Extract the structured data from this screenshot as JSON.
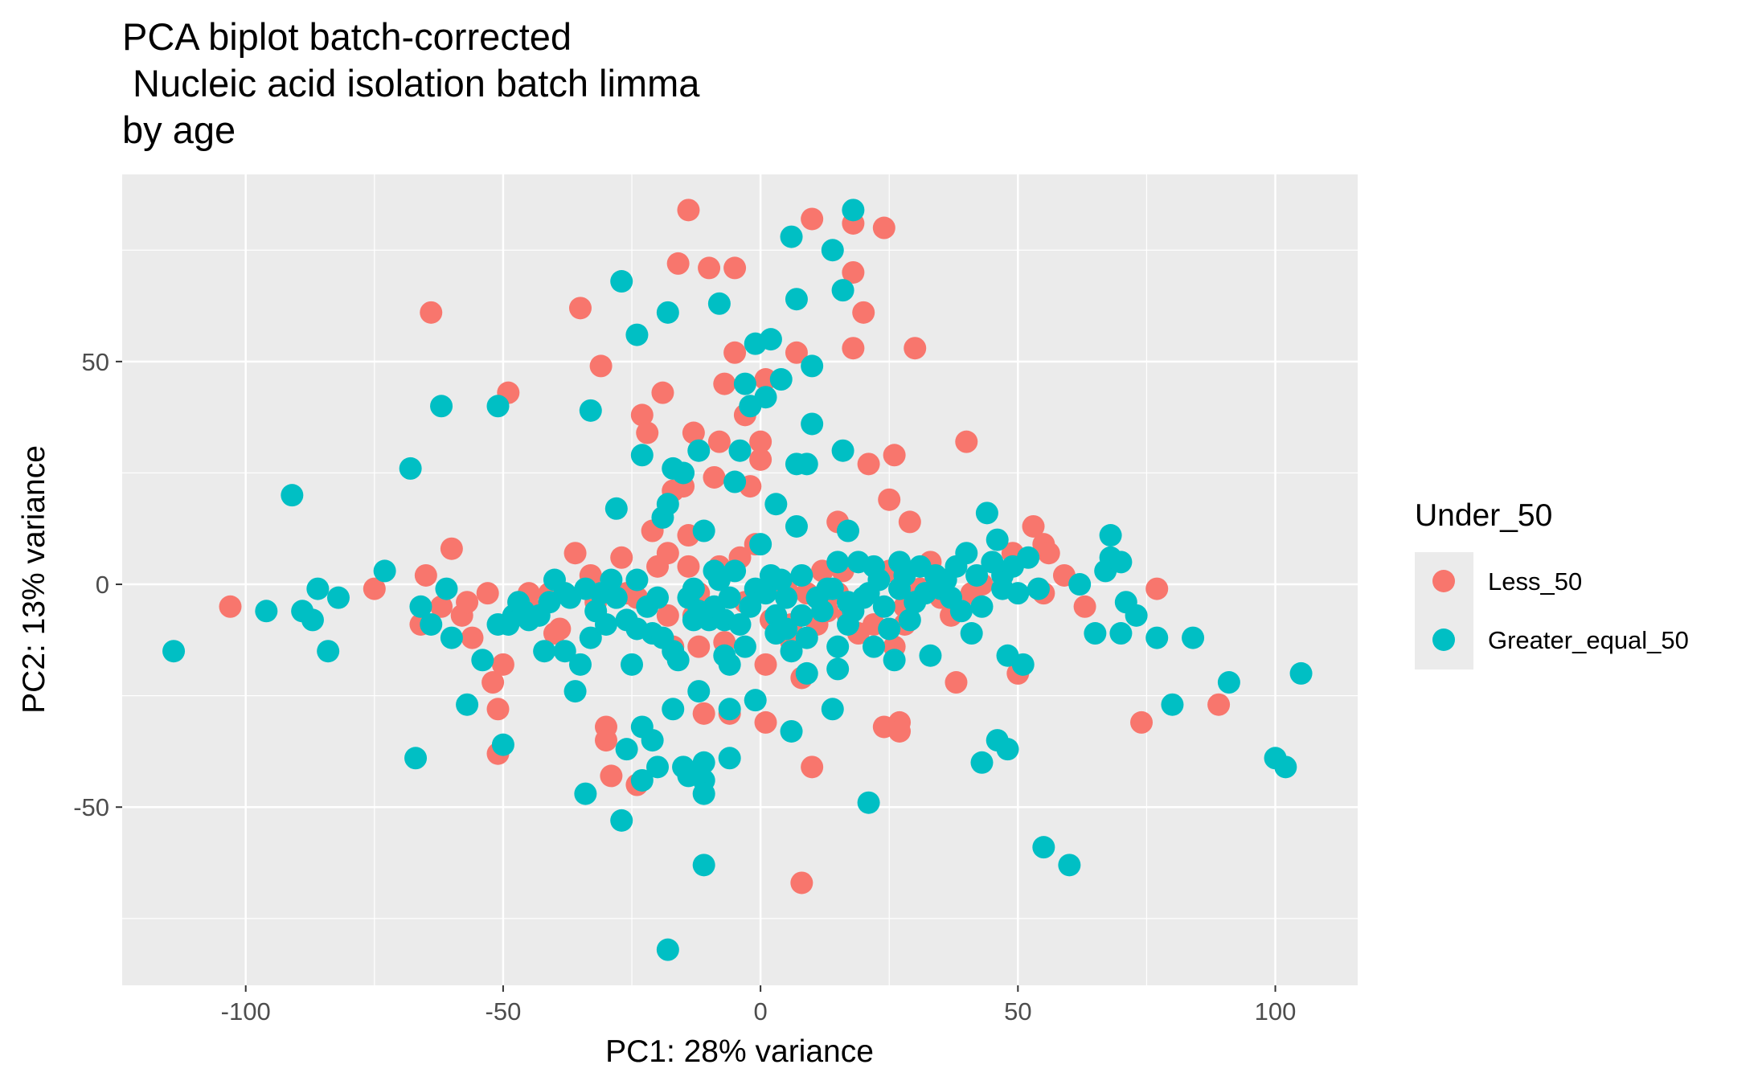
{
  "chart_data": {
    "type": "scatter",
    "title_lines": [
      "PCA biplot batch-corrected",
      " Nucleic acid isolation batch limma",
      "by age"
    ],
    "xlabel": "PC1: 28% variance",
    "ylabel": "PC2: 13% variance",
    "xlim": [
      -124,
      116
    ],
    "ylim": [
      -90,
      92
    ],
    "xticks": [
      -100,
      -50,
      0,
      50,
      100
    ],
    "yticks": [
      -50,
      0,
      50
    ],
    "grid": true,
    "legend": {
      "title": "Under_50",
      "placement": "right"
    },
    "series": [
      {
        "name": "Less_50",
        "color": "#F8766D",
        "points": [
          [
            -103,
            -5
          ],
          [
            -75,
            -1
          ],
          [
            -66,
            -9
          ],
          [
            -65,
            2
          ],
          [
            -64,
            61
          ],
          [
            -62,
            -5
          ],
          [
            -60,
            8
          ],
          [
            -58,
            -7
          ],
          [
            -57,
            -4
          ],
          [
            -56,
            -12
          ],
          [
            -53,
            -2
          ],
          [
            -52,
            -22
          ],
          [
            -51,
            -28
          ],
          [
            -51,
            -38
          ],
          [
            -50,
            -18
          ],
          [
            -49,
            43
          ],
          [
            -47,
            -4
          ],
          [
            -45,
            -2
          ],
          [
            -43,
            -6
          ],
          [
            -41,
            -2
          ],
          [
            -40,
            -11
          ],
          [
            -39,
            -10
          ],
          [
            -36,
            7
          ],
          [
            -35,
            62
          ],
          [
            -33,
            2
          ],
          [
            -32,
            -4
          ],
          [
            -31,
            49
          ],
          [
            -30,
            -32
          ],
          [
            -30,
            -35
          ],
          [
            -29,
            -43
          ],
          [
            -27,
            6
          ],
          [
            -26,
            -2
          ],
          [
            -24,
            -3
          ],
          [
            -24,
            -45
          ],
          [
            -23,
            38
          ],
          [
            -22,
            34
          ],
          [
            -21,
            12
          ],
          [
            -20,
            4
          ],
          [
            -19,
            43
          ],
          [
            -18,
            7
          ],
          [
            -18,
            -7
          ],
          [
            -17,
            -14
          ],
          [
            -17,
            21
          ],
          [
            -16,
            72
          ],
          [
            -15,
            22
          ],
          [
            -14,
            84
          ],
          [
            -14,
            11
          ],
          [
            -14,
            4
          ],
          [
            -13,
            -7
          ],
          [
            -13,
            34
          ],
          [
            -12,
            -2
          ],
          [
            -12,
            -14
          ],
          [
            -11,
            -29
          ],
          [
            -10,
            71
          ],
          [
            -9,
            24
          ],
          [
            -8,
            32
          ],
          [
            -8,
            4
          ],
          [
            -7,
            45
          ],
          [
            -7,
            -13
          ],
          [
            -6,
            -29
          ],
          [
            -5,
            52
          ],
          [
            -5,
            71
          ],
          [
            -4,
            6
          ],
          [
            -3,
            38
          ],
          [
            -3,
            -4
          ],
          [
            -2,
            22
          ],
          [
            -1,
            9
          ],
          [
            0,
            28
          ],
          [
            0,
            32
          ],
          [
            1,
            46
          ],
          [
            1,
            -18
          ],
          [
            1,
            -31
          ],
          [
            2,
            -8
          ],
          [
            3,
            1
          ],
          [
            5,
            -1
          ],
          [
            6,
            -13
          ],
          [
            6,
            -9
          ],
          [
            7,
            52
          ],
          [
            8,
            -21
          ],
          [
            8,
            -67
          ],
          [
            9,
            -2
          ],
          [
            10,
            -41
          ],
          [
            10,
            82
          ],
          [
            11,
            -9
          ],
          [
            12,
            3
          ],
          [
            13,
            -6
          ],
          [
            15,
            -2
          ],
          [
            15,
            14
          ],
          [
            16,
            3
          ],
          [
            17,
            -7
          ],
          [
            18,
            53
          ],
          [
            18,
            70
          ],
          [
            18,
            81
          ],
          [
            19,
            -11
          ],
          [
            20,
            61
          ],
          [
            21,
            27
          ],
          [
            22,
            -9
          ],
          [
            24,
            -32
          ],
          [
            24,
            80
          ],
          [
            25,
            19
          ],
          [
            25,
            3
          ],
          [
            26,
            29
          ],
          [
            26,
            -14
          ],
          [
            27,
            -31
          ],
          [
            27,
            -33
          ],
          [
            28,
            -5
          ],
          [
            28,
            -9
          ],
          [
            29,
            14
          ],
          [
            30,
            53
          ],
          [
            31,
            -1
          ],
          [
            33,
            5
          ],
          [
            35,
            -3
          ],
          [
            37,
            -7
          ],
          [
            38,
            -22
          ],
          [
            40,
            32
          ],
          [
            41,
            -2
          ],
          [
            43,
            0
          ],
          [
            49,
            7
          ],
          [
            50,
            -20
          ],
          [
            53,
            13
          ],
          [
            54,
            -1
          ],
          [
            55,
            9
          ],
          [
            55,
            -2
          ],
          [
            56,
            7
          ],
          [
            59,
            2
          ],
          [
            63,
            -5
          ],
          [
            74,
            -31
          ],
          [
            77,
            -1
          ],
          [
            89,
            -27
          ]
        ]
      },
      {
        "name": "Greater_equal_50",
        "color": "#00BFC4",
        "points": [
          [
            -114,
            -15
          ],
          [
            -96,
            -6
          ],
          [
            -91,
            20
          ],
          [
            -89,
            -6
          ],
          [
            -87,
            -8
          ],
          [
            -86,
            -1
          ],
          [
            -84,
            -15
          ],
          [
            -82,
            -3
          ],
          [
            -73,
            3
          ],
          [
            -68,
            26
          ],
          [
            -67,
            -39
          ],
          [
            -66,
            -5
          ],
          [
            -64,
            -9
          ],
          [
            -62,
            40
          ],
          [
            -61,
            -1
          ],
          [
            -60,
            -12
          ],
          [
            -57,
            -27
          ],
          [
            -54,
            -17
          ],
          [
            -51,
            -9
          ],
          [
            -51,
            40
          ],
          [
            -50,
            -36
          ],
          [
            -49,
            -9
          ],
          [
            -48,
            -7
          ],
          [
            -47,
            -4
          ],
          [
            -46,
            -6
          ],
          [
            -45,
            -8
          ],
          [
            -43,
            -7
          ],
          [
            -42,
            -15
          ],
          [
            -41,
            -4
          ],
          [
            -40,
            1
          ],
          [
            -38,
            -2
          ],
          [
            -38,
            -15
          ],
          [
            -37,
            -3
          ],
          [
            -36,
            -24
          ],
          [
            -35,
            -18
          ],
          [
            -34,
            -1
          ],
          [
            -34,
            -47
          ],
          [
            -33,
            39
          ],
          [
            -33,
            -12
          ],
          [
            -32,
            -6
          ],
          [
            -31,
            -2
          ],
          [
            -30,
            -9
          ],
          [
            -29,
            1
          ],
          [
            -28,
            -3
          ],
          [
            -28,
            17
          ],
          [
            -27,
            68
          ],
          [
            -27,
            -53
          ],
          [
            -26,
            -37
          ],
          [
            -26,
            -8
          ],
          [
            -25,
            -18
          ],
          [
            -24,
            -10
          ],
          [
            -24,
            56
          ],
          [
            -24,
            1
          ],
          [
            -23,
            29
          ],
          [
            -23,
            -32
          ],
          [
            -23,
            -44
          ],
          [
            -22,
            -5
          ],
          [
            -21,
            -35
          ],
          [
            -21,
            -11
          ],
          [
            -20,
            -41
          ],
          [
            -20,
            -3
          ],
          [
            -19,
            -12
          ],
          [
            -19,
            15
          ],
          [
            -18,
            18
          ],
          [
            -18,
            61
          ],
          [
            -18,
            -82
          ],
          [
            -17,
            -28
          ],
          [
            -17,
            26
          ],
          [
            -17,
            -15
          ],
          [
            -16,
            -17
          ],
          [
            -15,
            -41
          ],
          [
            -15,
            25
          ],
          [
            -14,
            -3
          ],
          [
            -14,
            -43
          ],
          [
            -13,
            -1
          ],
          [
            -13,
            -8
          ],
          [
            -12,
            -24
          ],
          [
            -12,
            -6
          ],
          [
            -12,
            30
          ],
          [
            -11,
            -63
          ],
          [
            -11,
            -40
          ],
          [
            -11,
            -44
          ],
          [
            -11,
            -47
          ],
          [
            -11,
            12
          ],
          [
            -10,
            -8
          ],
          [
            -9,
            -5
          ],
          [
            -9,
            3
          ],
          [
            -8,
            63
          ],
          [
            -8,
            1
          ],
          [
            -7,
            -16
          ],
          [
            -7,
            -8
          ],
          [
            -6,
            -39
          ],
          [
            -6,
            -18
          ],
          [
            -6,
            -28
          ],
          [
            -6,
            -3
          ],
          [
            -5,
            3
          ],
          [
            -5,
            23
          ],
          [
            -4,
            30
          ],
          [
            -4,
            -9
          ],
          [
            -3,
            -14
          ],
          [
            -3,
            45
          ],
          [
            -2,
            -5
          ],
          [
            -2,
            40
          ],
          [
            -1,
            -26
          ],
          [
            -1,
            -1
          ],
          [
            -1,
            54
          ],
          [
            0,
            9
          ],
          [
            1,
            -2
          ],
          [
            1,
            42
          ],
          [
            2,
            55
          ],
          [
            2,
            2
          ],
          [
            3,
            18
          ],
          [
            3,
            -7
          ],
          [
            3,
            -11
          ],
          [
            4,
            1
          ],
          [
            4,
            46
          ],
          [
            5,
            -10
          ],
          [
            5,
            -3
          ],
          [
            6,
            -15
          ],
          [
            6,
            78
          ],
          [
            6,
            -33
          ],
          [
            7,
            27
          ],
          [
            7,
            13
          ],
          [
            7,
            64
          ],
          [
            8,
            2
          ],
          [
            8,
            -7
          ],
          [
            9,
            -20
          ],
          [
            9,
            -12
          ],
          [
            9,
            27
          ],
          [
            10,
            36
          ],
          [
            10,
            49
          ],
          [
            11,
            -3
          ],
          [
            12,
            -6
          ],
          [
            13,
            -1
          ],
          [
            14,
            -1
          ],
          [
            14,
            75
          ],
          [
            14,
            -28
          ],
          [
            15,
            -14
          ],
          [
            15,
            -19
          ],
          [
            15,
            5
          ],
          [
            16,
            66
          ],
          [
            16,
            30
          ],
          [
            17,
            -9
          ],
          [
            17,
            -4
          ],
          [
            17,
            12
          ],
          [
            18,
            84
          ],
          [
            18,
            -6
          ],
          [
            19,
            5
          ],
          [
            20,
            -3
          ],
          [
            21,
            -2
          ],
          [
            21,
            -49
          ],
          [
            22,
            -14
          ],
          [
            22,
            4
          ],
          [
            23,
            1
          ],
          [
            24,
            -5
          ],
          [
            25,
            -10
          ],
          [
            26,
            -17
          ],
          [
            27,
            -1
          ],
          [
            27,
            5
          ],
          [
            28,
            2
          ],
          [
            29,
            -8
          ],
          [
            30,
            -4
          ],
          [
            31,
            4
          ],
          [
            32,
            -2
          ],
          [
            33,
            -16
          ],
          [
            34,
            2
          ],
          [
            35,
            -1
          ],
          [
            36,
            1
          ],
          [
            37,
            -3
          ],
          [
            38,
            4
          ],
          [
            39,
            -6
          ],
          [
            40,
            7
          ],
          [
            41,
            -11
          ],
          [
            42,
            2
          ],
          [
            43,
            -5
          ],
          [
            43,
            -40
          ],
          [
            44,
            16
          ],
          [
            45,
            5
          ],
          [
            46,
            10
          ],
          [
            46,
            -35
          ],
          [
            47,
            2
          ],
          [
            47,
            -1
          ],
          [
            48,
            -16
          ],
          [
            48,
            -37
          ],
          [
            49,
            4
          ],
          [
            50,
            -2
          ],
          [
            51,
            -18
          ],
          [
            52,
            6
          ],
          [
            54,
            -1
          ],
          [
            55,
            -59
          ],
          [
            60,
            -63
          ],
          [
            62,
            0
          ],
          [
            65,
            -11
          ],
          [
            67,
            3
          ],
          [
            68,
            11
          ],
          [
            68,
            6
          ],
          [
            70,
            -11
          ],
          [
            70,
            5
          ],
          [
            71,
            -4
          ],
          [
            73,
            -7
          ],
          [
            77,
            -12
          ],
          [
            80,
            -27
          ],
          [
            84,
            -12
          ],
          [
            91,
            -22
          ],
          [
            100,
            -39
          ],
          [
            102,
            -41
          ],
          [
            105,
            -20
          ]
        ]
      }
    ]
  }
}
